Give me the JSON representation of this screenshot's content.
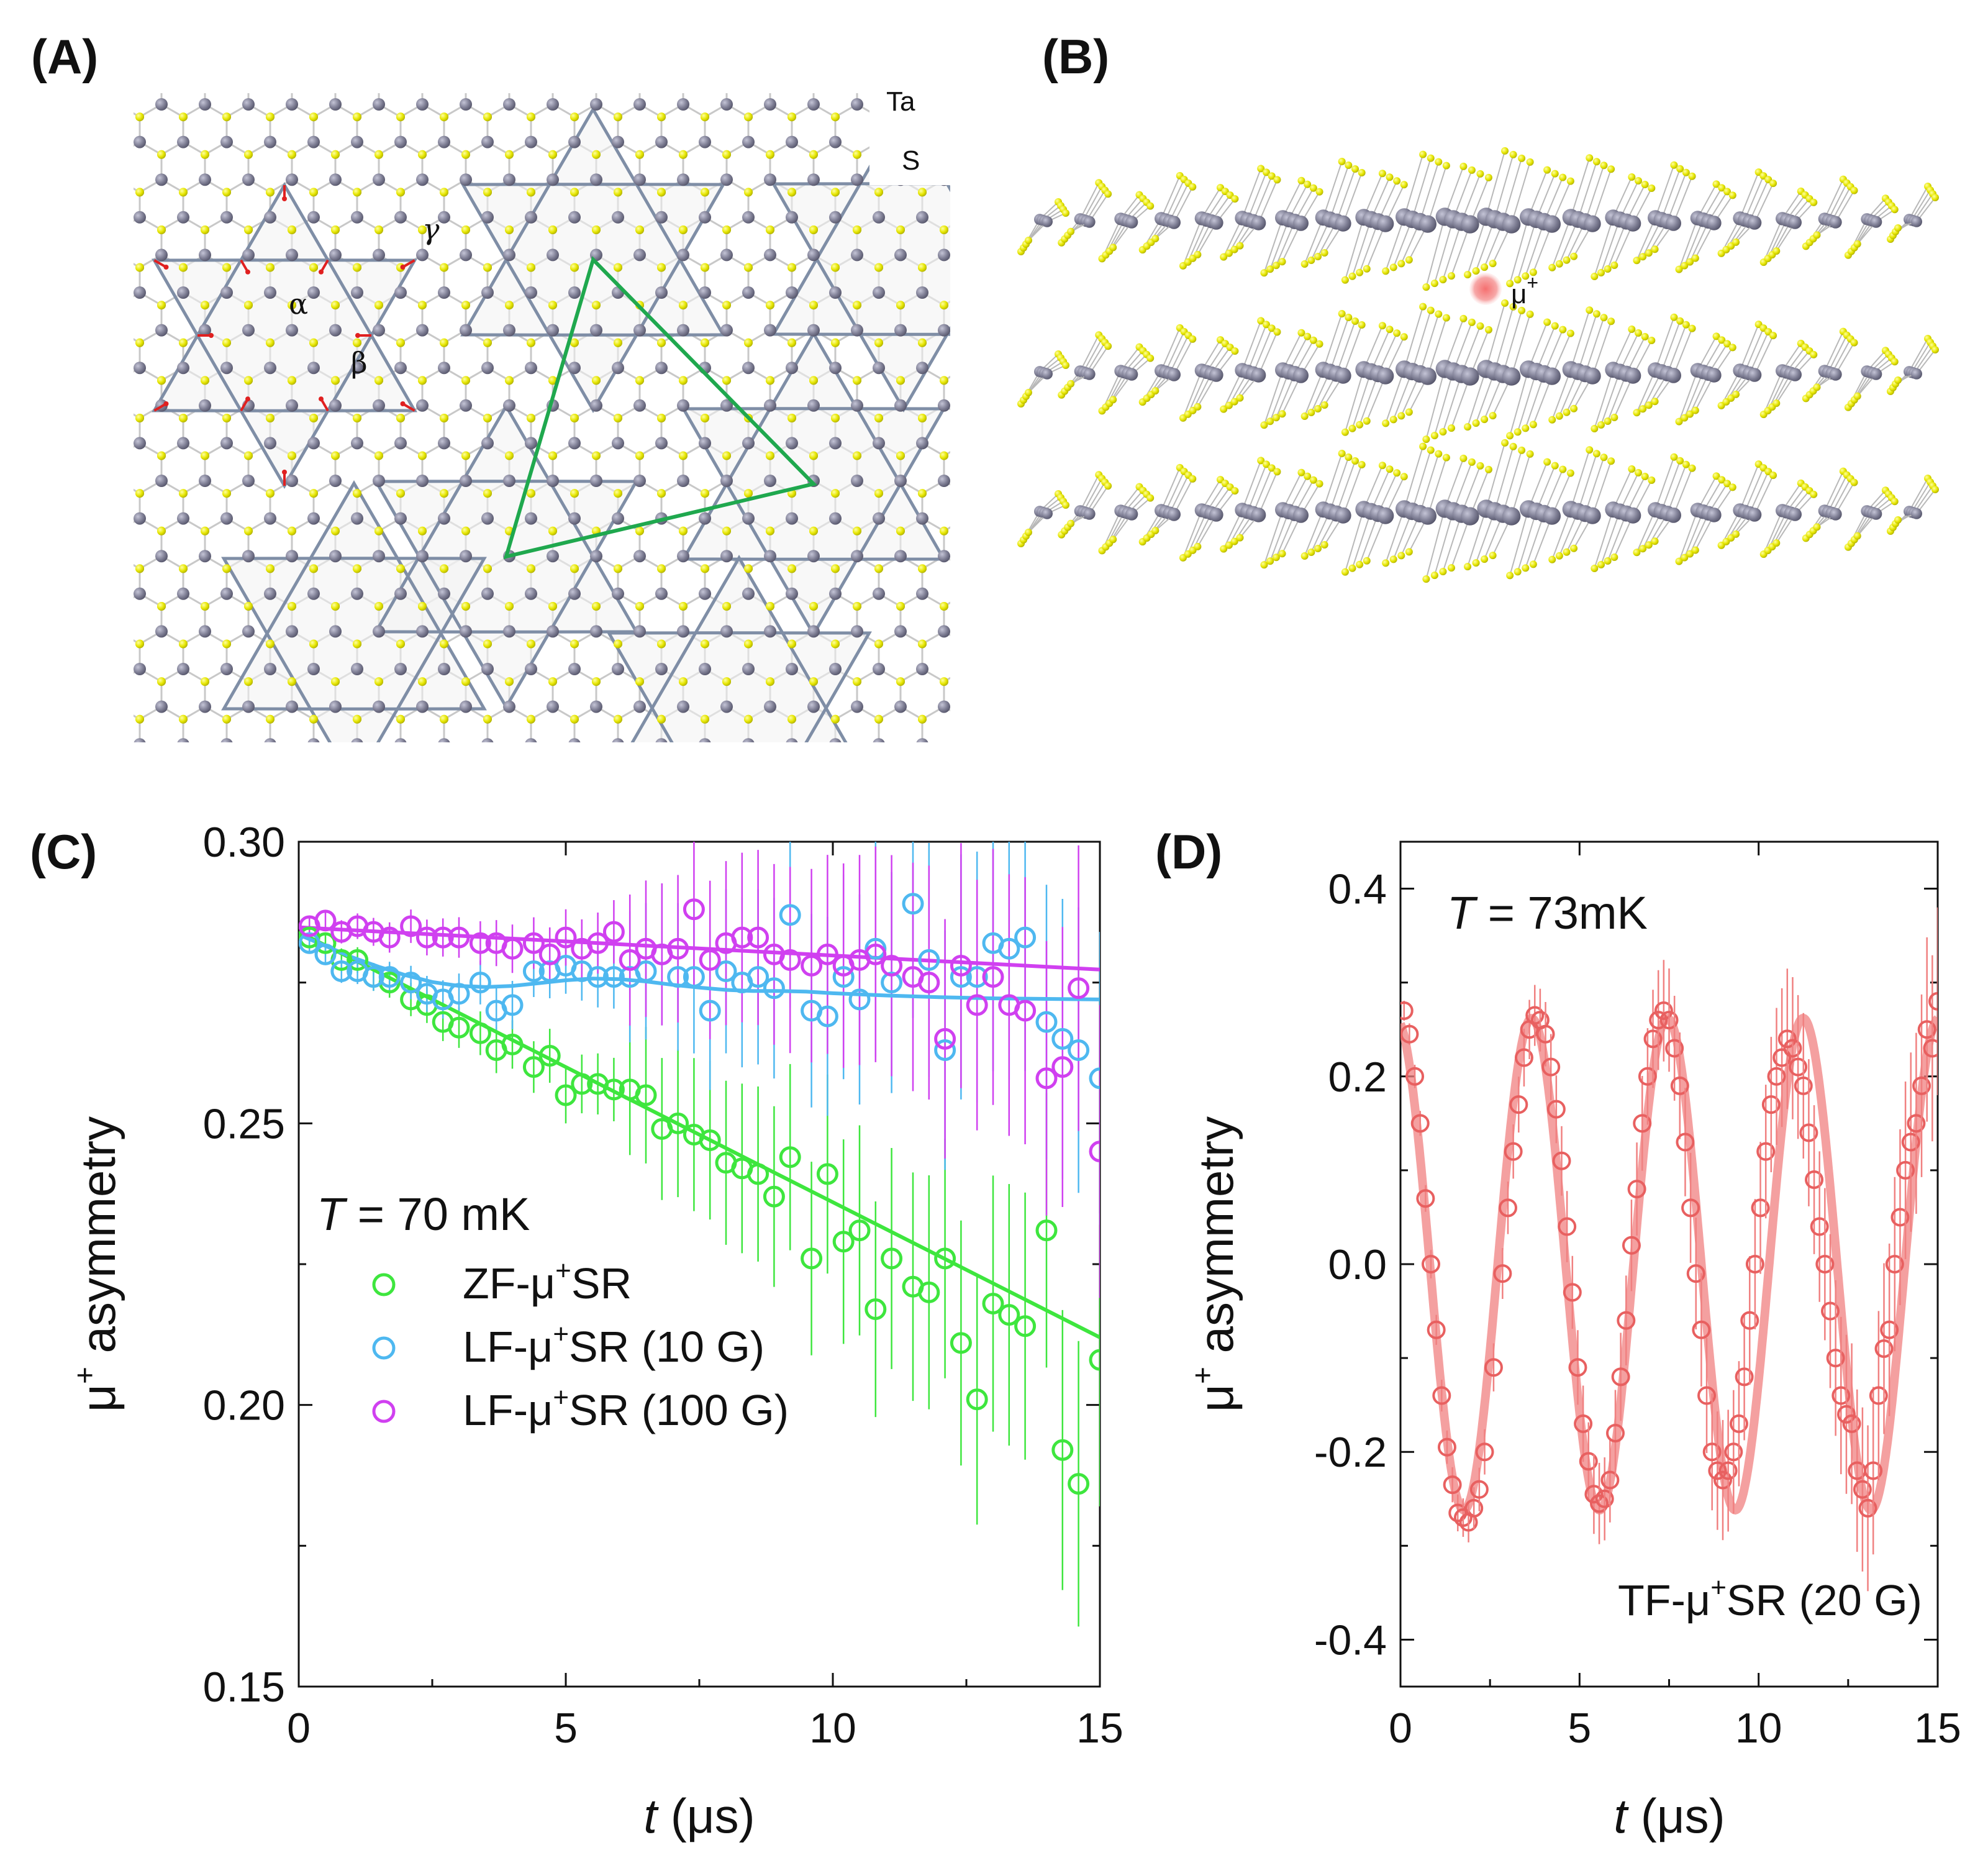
{
  "panels": {
    "A": {
      "label": "(A)",
      "atom_labels": [
        "Ta",
        "S"
      ],
      "site_labels": [
        "α",
        "β",
        "γ"
      ],
      "colors": {
        "ta": "#7e7e94",
        "s": "#e6e600",
        "star": "#7f8ea6",
        "triangle": "#1fa84e",
        "arrow": "#e02020"
      }
    },
    "B": {
      "label": "(B)",
      "muon_label": "μ",
      "muon_sup": "+",
      "colors": {
        "ta": "#8a8aa2",
        "s": "#e6e600",
        "muon": "#f49a9a"
      }
    },
    "C": {
      "label": "(C)"
    },
    "D": {
      "label": "(D)"
    }
  },
  "chart_data": [
    {
      "type": "scatter",
      "panel": "C",
      "xlabel_italic": "t",
      "xlabel_unit": "(μs)",
      "ylabel_base": "μ",
      "ylabel_sup": "+",
      "ylabel_rest": " asymmetry",
      "xlim": [
        0,
        15
      ],
      "ylim": [
        0.15,
        0.3
      ],
      "xticks": [
        0,
        5,
        10,
        15
      ],
      "yticks": [
        0.15,
        0.2,
        0.25,
        0.3
      ],
      "ytick_labels": [
        "0.15",
        "0.20",
        "0.25",
        "0.30"
      ],
      "annotation_italic": "T",
      "annotation_rest": " = 70 mK",
      "legend_position": "lower-left",
      "series": [
        {
          "name": "ZF-μ⁺SR",
          "name_parts": [
            "ZF-μ",
            "+",
            "SR"
          ],
          "color": "#3ee63e",
          "x": [
            0.2,
            0.5,
            0.8,
            1.1,
            1.4,
            1.7,
            2.1,
            2.4,
            2.7,
            3.0,
            3.4,
            3.7,
            4.0,
            4.4,
            4.7,
            5.0,
            5.3,
            5.6,
            5.9,
            6.2,
            6.5,
            6.8,
            7.1,
            7.4,
            7.7,
            8.0,
            8.3,
            8.6,
            8.9,
            9.2,
            9.6,
            9.9,
            10.2,
            10.5,
            10.8,
            11.1,
            11.5,
            11.8,
            12.1,
            12.4,
            12.7,
            13.0,
            13.3,
            13.6,
            14.0,
            14.3,
            14.6,
            15.0
          ],
          "y": [
            0.283,
            0.282,
            0.279,
            0.279,
            0.276,
            0.275,
            0.272,
            0.271,
            0.268,
            0.267,
            0.266,
            0.263,
            0.264,
            0.26,
            0.262,
            0.255,
            0.257,
            0.257,
            0.256,
            0.256,
            0.255,
            0.249,
            0.25,
            0.248,
            0.247,
            0.243,
            0.242,
            0.241,
            0.237,
            0.244,
            0.226,
            0.241,
            0.229,
            0.231,
            0.217,
            0.226,
            0.221,
            0.22,
            0.226,
            0.211,
            0.201,
            0.218,
            0.216,
            0.214,
            0.231,
            0.192,
            0.186,
            0.208
          ],
          "fit_x": [
            0,
            15
          ],
          "fit_y": [
            0.284,
            0.212
          ]
        },
        {
          "name": "LF-μ⁺SR (10 G)",
          "name_parts": [
            "LF-μ",
            "+",
            "SR (10 G)"
          ],
          "color": "#4eb8f0",
          "x": [
            0.2,
            0.5,
            0.8,
            1.1,
            1.4,
            1.7,
            2.1,
            2.4,
            2.7,
            3.0,
            3.4,
            3.7,
            4.0,
            4.4,
            4.7,
            5.0,
            5.3,
            5.6,
            5.9,
            6.2,
            6.5,
            6.8,
            7.1,
            7.4,
            7.7,
            8.0,
            8.3,
            8.6,
            8.9,
            9.2,
            9.6,
            9.9,
            10.2,
            10.5,
            10.8,
            11.1,
            11.5,
            11.8,
            12.1,
            12.4,
            12.7,
            13.0,
            13.3,
            13.6,
            14.0,
            14.3,
            14.6,
            15.0
          ],
          "y": [
            0.282,
            0.28,
            0.277,
            0.277,
            0.276,
            0.276,
            0.275,
            0.273,
            0.272,
            0.273,
            0.275,
            0.27,
            0.271,
            0.277,
            0.277,
            0.278,
            0.277,
            0.276,
            0.276,
            0.276,
            0.277,
            0.28,
            0.276,
            0.276,
            0.27,
            0.277,
            0.275,
            0.276,
            0.274,
            0.287,
            0.27,
            0.269,
            0.276,
            0.272,
            0.281,
            0.275,
            0.289,
            0.279,
            0.263,
            0.276,
            0.276,
            0.282,
            0.281,
            0.283,
            0.268,
            0.265,
            0.263,
            0.258
          ],
          "fit_x": [
            0,
            0.5,
            1,
            1.5,
            2,
            2.5,
            3,
            3.5,
            4,
            4.5,
            5,
            5.5,
            6,
            6.5,
            7,
            7.5,
            8,
            8.5,
            9,
            9.5,
            10,
            11,
            12,
            13,
            14,
            15
          ],
          "fit_y": [
            0.2835,
            0.2815,
            0.2795,
            0.2778,
            0.2763,
            0.2751,
            0.2744,
            0.2742,
            0.2744,
            0.2749,
            0.2754,
            0.2757,
            0.2756,
            0.2752,
            0.2746,
            0.2741,
            0.2737,
            0.2735,
            0.2735,
            0.2734,
            0.2731,
            0.2727,
            0.2724,
            0.2722,
            0.2721,
            0.272
          ]
        },
        {
          "name": "LF-μ⁺SR (100 G)",
          "name_parts": [
            "LF-μ",
            "+",
            "SR (100 G)"
          ],
          "color": "#d040f0",
          "x": [
            0.2,
            0.5,
            0.8,
            1.1,
            1.4,
            1.7,
            2.1,
            2.4,
            2.7,
            3.0,
            3.4,
            3.7,
            4.0,
            4.4,
            4.7,
            5.0,
            5.3,
            5.6,
            5.9,
            6.2,
            6.5,
            6.8,
            7.1,
            7.4,
            7.7,
            8.0,
            8.3,
            8.6,
            8.9,
            9.2,
            9.6,
            9.9,
            10.2,
            10.5,
            10.8,
            11.1,
            11.5,
            11.8,
            12.1,
            12.4,
            12.7,
            13.0,
            13.3,
            13.6,
            14.0,
            14.3,
            14.6,
            15.0
          ],
          "y": [
            0.285,
            0.286,
            0.284,
            0.285,
            0.284,
            0.283,
            0.285,
            0.283,
            0.283,
            0.283,
            0.282,
            0.282,
            0.281,
            0.282,
            0.28,
            0.283,
            0.281,
            0.282,
            0.284,
            0.279,
            0.281,
            0.28,
            0.281,
            0.288,
            0.279,
            0.282,
            0.283,
            0.283,
            0.28,
            0.279,
            0.278,
            0.28,
            0.278,
            0.279,
            0.28,
            0.278,
            0.276,
            0.275,
            0.265,
            0.278,
            0.271,
            0.276,
            0.271,
            0.27,
            0.258,
            0.26,
            0.274,
            0.245
          ],
          "fit_x": [
            0,
            15
          ],
          "fit_y": [
            0.2848,
            0.2773
          ]
        }
      ]
    },
    {
      "type": "scatter",
      "panel": "D",
      "xlabel_italic": "t",
      "xlabel_unit": "(μs)",
      "ylabel_base": "μ",
      "ylabel_sup": "+",
      "ylabel_rest": " asymmetry",
      "xlim": [
        0,
        15
      ],
      "ylim": [
        -0.45,
        0.45
      ],
      "xticks": [
        0,
        5,
        10,
        15
      ],
      "yticks": [
        -0.4,
        -0.2,
        0.0,
        0.2,
        0.4
      ],
      "ytick_labels": [
        "-0.4",
        "-0.2",
        "0.0",
        "0.2",
        "0.4"
      ],
      "annotation_italic": "T",
      "annotation_rest": " = 73mK",
      "series_label_parts": [
        "TF-μ",
        "+",
        "SR (20 G)"
      ],
      "series": [
        {
          "name": "TF-μ⁺SR (20 G)",
          "color": "#f08080",
          "amplitude": 0.262,
          "period_us": 3.79,
          "phase_rad": 0.21,
          "x": [
            0.1,
            0.25,
            0.4,
            0.55,
            0.7,
            0.85,
            1.0,
            1.15,
            1.3,
            1.45,
            1.6,
            1.75,
            1.9,
            2.05,
            2.2,
            2.35,
            2.6,
            2.85,
            3.0,
            3.15,
            3.3,
            3.45,
            3.6,
            3.75,
            3.9,
            4.05,
            4.2,
            4.35,
            4.5,
            4.65,
            4.8,
            4.95,
            5.1,
            5.25,
            5.4,
            5.55,
            5.7,
            5.85,
            6.0,
            6.15,
            6.3,
            6.45,
            6.6,
            6.75,
            6.9,
            7.05,
            7.2,
            7.35,
            7.5,
            7.65,
            7.8,
            7.95,
            8.1,
            8.25,
            8.4,
            8.55,
            8.7,
            8.85,
            9.0,
            9.15,
            9.3,
            9.45,
            9.6,
            9.75,
            9.9,
            10.05,
            10.2,
            10.35,
            10.5,
            10.65,
            10.8,
            10.95,
            11.1,
            11.25,
            11.4,
            11.55,
            11.7,
            11.85,
            12.0,
            12.15,
            12.3,
            12.45,
            12.6,
            12.75,
            12.9,
            13.05,
            13.2,
            13.35,
            13.5,
            13.65,
            13.8,
            13.95,
            14.1,
            14.25,
            14.4,
            14.55,
            14.7,
            14.85,
            15.0
          ],
          "y": [
            0.27,
            0.245,
            0.2,
            0.15,
            0.07,
            0.0,
            -0.07,
            -0.14,
            -0.195,
            -0.235,
            -0.265,
            -0.27,
            -0.275,
            -0.26,
            -0.24,
            -0.2,
            -0.11,
            -0.01,
            0.06,
            0.12,
            0.17,
            0.22,
            0.25,
            0.265,
            0.26,
            0.245,
            0.21,
            0.165,
            0.11,
            0.04,
            -0.03,
            -0.11,
            -0.17,
            -0.21,
            -0.245,
            -0.255,
            -0.25,
            -0.23,
            -0.18,
            -0.12,
            -0.06,
            0.02,
            0.08,
            0.15,
            0.2,
            0.24,
            0.26,
            0.27,
            0.26,
            0.23,
            0.19,
            0.13,
            0.06,
            -0.01,
            -0.07,
            -0.14,
            -0.2,
            -0.22,
            -0.23,
            -0.22,
            -0.2,
            -0.17,
            -0.12,
            -0.06,
            0.0,
            0.06,
            0.12,
            0.17,
            0.2,
            0.22,
            0.24,
            0.23,
            0.21,
            0.19,
            0.14,
            0.09,
            0.04,
            0.0,
            -0.05,
            -0.1,
            -0.14,
            -0.16,
            -0.17,
            -0.22,
            -0.24,
            -0.26,
            -0.22,
            -0.14,
            -0.09,
            -0.07,
            0.0,
            0.05,
            0.1,
            0.13,
            0.15,
            0.19,
            0.25,
            0.23,
            0.28
          ]
        }
      ]
    }
  ]
}
